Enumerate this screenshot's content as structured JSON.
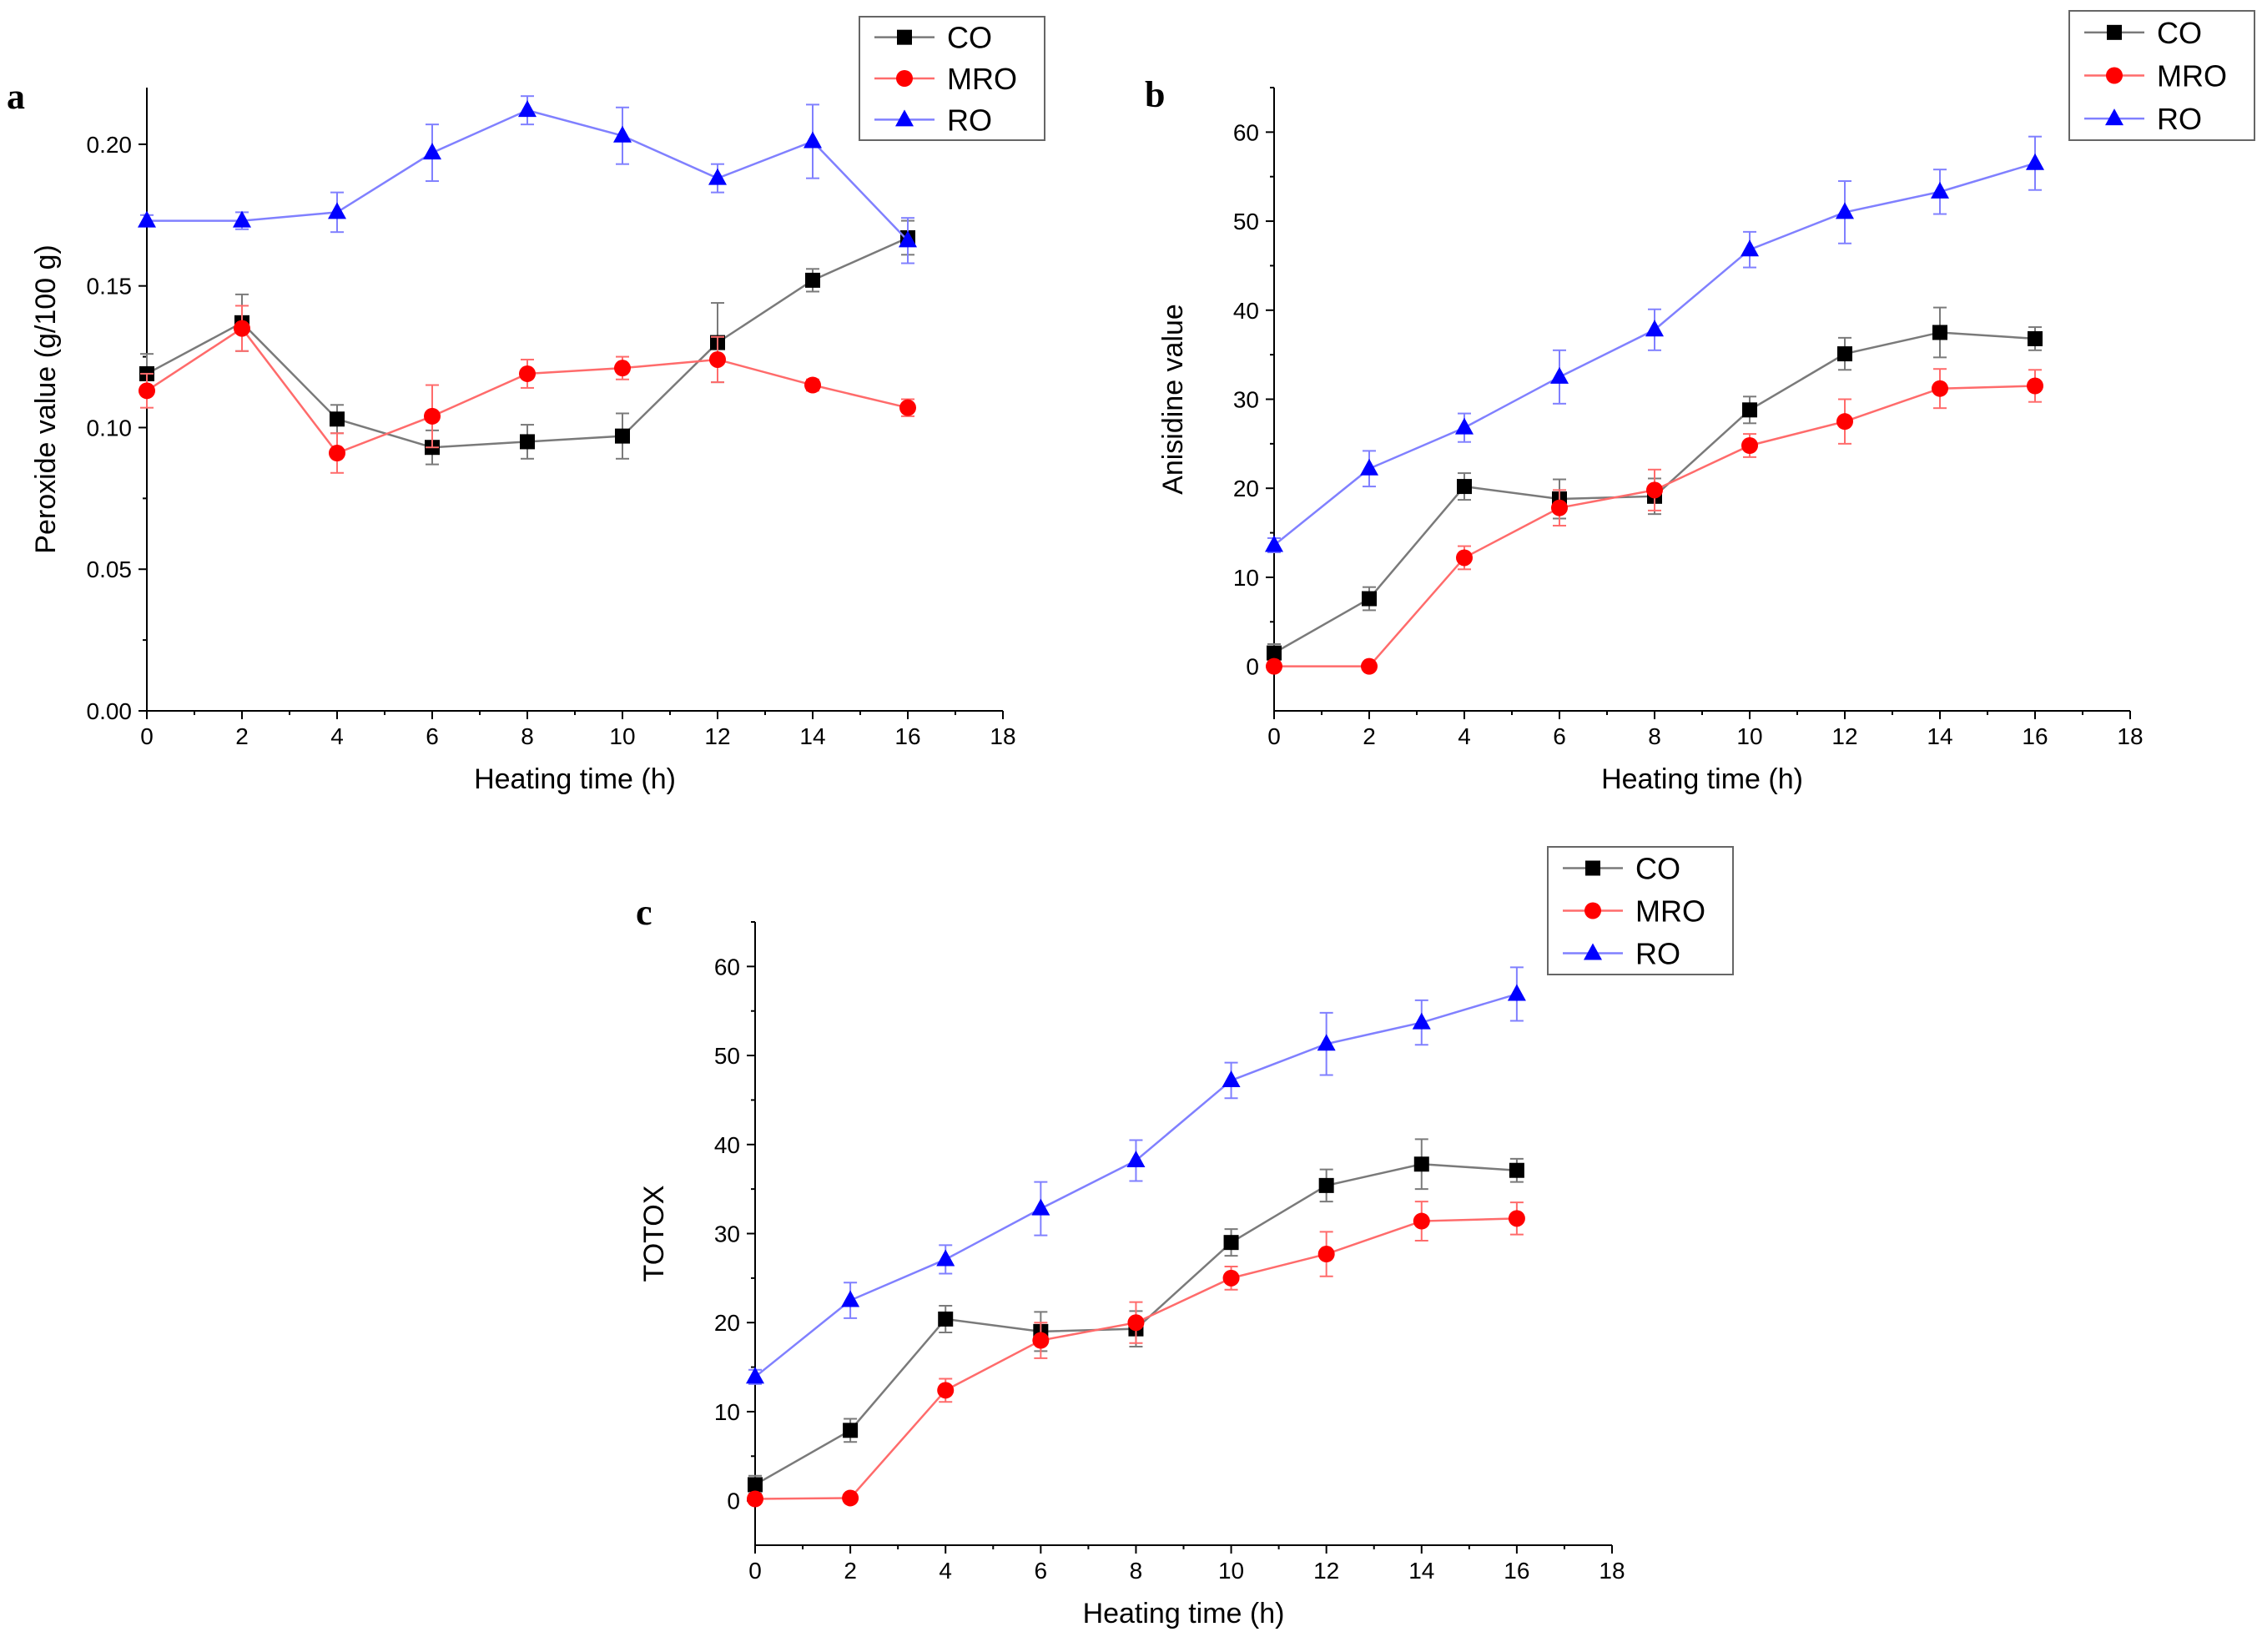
{
  "chart_data": [
    {
      "type": "line",
      "panel_letter": "a",
      "xlabel": "Heating time (h)",
      "ylabel": "Peroxide value (g/100 g)",
      "xlim": [
        0,
        18
      ],
      "ylim": [
        0,
        0.22
      ],
      "xticks": [
        "0",
        "2",
        "4",
        "6",
        "8",
        "10",
        "12",
        "14",
        "16",
        "18"
      ],
      "yticks": [
        "0.00",
        "0.05",
        "0.10",
        "0.15",
        "0.20"
      ],
      "legend_position": "top-right",
      "x": [
        0,
        2,
        4,
        6,
        8,
        10,
        12,
        14,
        16
      ],
      "series": [
        {
          "name": "CO",
          "color": "#000000",
          "line_color": "#7a7a7a",
          "marker": "square",
          "values": [
            0.119,
            0.137,
            0.103,
            0.093,
            0.095,
            0.097,
            0.13,
            0.152,
            0.167
          ],
          "errors": [
            0.007,
            0.01,
            0.005,
            0.006,
            0.006,
            0.008,
            0.014,
            0.004,
            0.006
          ]
        },
        {
          "name": "MRO",
          "color": "#ff0000",
          "line_color": "#ff6b6b",
          "marker": "circle",
          "values": [
            0.113,
            0.135,
            0.091,
            0.104,
            0.119,
            0.121,
            0.124,
            0.115,
            0.107
          ],
          "errors": [
            0.006,
            0.008,
            0.007,
            0.011,
            0.005,
            0.004,
            0.008,
            0.002,
            0.003
          ]
        },
        {
          "name": "RO",
          "color": "#0000ff",
          "line_color": "#8080ff",
          "marker": "triangle",
          "values": [
            0.173,
            0.173,
            0.176,
            0.197,
            0.212,
            0.203,
            0.188,
            0.201,
            0.166
          ],
          "errors": [
            0.002,
            0.003,
            0.007,
            0.01,
            0.005,
            0.01,
            0.005,
            0.013,
            0.008
          ]
        }
      ]
    },
    {
      "type": "line",
      "panel_letter": "b",
      "xlabel": "Heating time (h)",
      "ylabel": "Anisidine value",
      "xlim": [
        0,
        18
      ],
      "ylim": [
        -5,
        65
      ],
      "xticks": [
        "0",
        "2",
        "4",
        "6",
        "8",
        "10",
        "12",
        "14",
        "16",
        "18"
      ],
      "yticks": [
        "0",
        "10",
        "20",
        "30",
        "40",
        "50",
        "60"
      ],
      "legend_position": "top-right",
      "x": [
        0,
        2,
        4,
        6,
        8,
        10,
        12,
        14,
        16
      ],
      "series": [
        {
          "name": "CO",
          "color": "#000000",
          "line_color": "#7a7a7a",
          "marker": "square",
          "values": [
            1.5,
            7.6,
            20.2,
            18.8,
            19.1,
            28.8,
            35.1,
            37.5,
            36.8
          ],
          "errors": [
            1.0,
            1.3,
            1.5,
            2.2,
            2.0,
            1.5,
            1.8,
            2.8,
            1.3
          ]
        },
        {
          "name": "MRO",
          "color": "#ff0000",
          "line_color": "#ff6b6b",
          "marker": "circle",
          "values": [
            0,
            0,
            12.2,
            17.8,
            19.8,
            24.8,
            27.5,
            31.2,
            31.5
          ],
          "errors": [
            0.3,
            0.3,
            1.3,
            2.0,
            2.3,
            1.3,
            2.5,
            2.2,
            1.8
          ]
        },
        {
          "name": "RO",
          "color": "#0000ff",
          "line_color": "#8080ff",
          "marker": "triangle",
          "values": [
            13.6,
            22.2,
            26.8,
            32.5,
            37.8,
            46.8,
            51.0,
            53.3,
            56.5
          ],
          "errors": [
            0.8,
            2.0,
            1.6,
            3.0,
            2.3,
            2.0,
            3.5,
            2.5,
            3.0
          ]
        }
      ]
    },
    {
      "type": "line",
      "panel_letter": "c",
      "xlabel": "Heating time (h)",
      "ylabel": "TOTOX",
      "xlim": [
        0,
        18
      ],
      "ylim": [
        -5,
        65
      ],
      "xticks": [
        "0",
        "2",
        "4",
        "6",
        "8",
        "10",
        "12",
        "14",
        "16",
        "18"
      ],
      "yticks": [
        "0",
        "10",
        "20",
        "30",
        "40",
        "50",
        "60"
      ],
      "legend_position": "top-right",
      "x": [
        0,
        2,
        4,
        6,
        8,
        10,
        12,
        14,
        16
      ],
      "series": [
        {
          "name": "CO",
          "color": "#000000",
          "line_color": "#7a7a7a",
          "marker": "square",
          "values": [
            1.8,
            7.9,
            20.4,
            19.0,
            19.3,
            29.0,
            35.4,
            37.8,
            37.1
          ],
          "errors": [
            1.0,
            1.3,
            1.5,
            2.2,
            2.0,
            1.5,
            1.8,
            2.8,
            1.3
          ]
        },
        {
          "name": "MRO",
          "color": "#ff0000",
          "line_color": "#ff6b6b",
          "marker": "circle",
          "values": [
            0.2,
            0.3,
            12.4,
            18.0,
            20.0,
            25.0,
            27.7,
            31.4,
            31.7
          ],
          "errors": [
            0.3,
            0.3,
            1.3,
            2.0,
            2.3,
            1.3,
            2.5,
            2.2,
            1.8
          ]
        },
        {
          "name": "RO",
          "color": "#0000ff",
          "line_color": "#8080ff",
          "marker": "triangle",
          "values": [
            13.9,
            22.5,
            27.1,
            32.8,
            38.2,
            47.2,
            51.3,
            53.7,
            56.9
          ],
          "errors": [
            0.8,
            2.0,
            1.6,
            3.0,
            2.3,
            2.0,
            3.5,
            2.5,
            3.0
          ]
        }
      ]
    }
  ]
}
